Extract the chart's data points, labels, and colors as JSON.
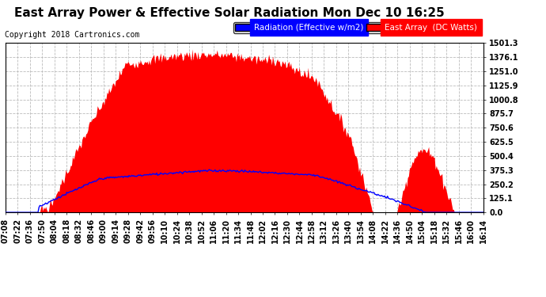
{
  "title": "East Array Power & Effective Solar Radiation Mon Dec 10 16:25",
  "copyright": "Copyright 2018 Cartronics.com",
  "legend_labels": [
    "Radiation (Effective w/m2)",
    "East Array  (DC Watts)"
  ],
  "legend_colors": [
    "#0000ff",
    "#ff0000"
  ],
  "background_color": "#ffffff",
  "plot_bg_color": "#ffffff",
  "ytick_labels": [
    "0.0",
    "125.1",
    "250.2",
    "375.3",
    "500.4",
    "625.5",
    "750.6",
    "875.7",
    "1000.8",
    "1125.9",
    "1251.0",
    "1376.1",
    "1501.3"
  ],
  "ytick_values": [
    0.0,
    125.1,
    250.2,
    375.3,
    500.4,
    625.5,
    750.6,
    875.7,
    1000.8,
    1125.9,
    1251.0,
    1376.1,
    1501.3
  ],
  "ymax": 1501.3,
  "xtick_labels": [
    "07:08",
    "07:22",
    "07:36",
    "07:50",
    "08:04",
    "08:18",
    "08:32",
    "08:46",
    "09:00",
    "09:14",
    "09:28",
    "09:42",
    "09:56",
    "10:10",
    "10:24",
    "10:38",
    "10:52",
    "11:06",
    "11:20",
    "11:34",
    "11:48",
    "12:02",
    "12:16",
    "12:30",
    "12:44",
    "12:58",
    "13:12",
    "13:26",
    "13:40",
    "13:54",
    "14:08",
    "14:22",
    "14:36",
    "14:50",
    "15:04",
    "15:18",
    "15:32",
    "15:46",
    "16:00",
    "16:14"
  ],
  "grid_color": "#bbbbbb",
  "grid_linestyle": "--",
  "fill_color_red": "#ff0000",
  "line_color_blue": "#0000ff",
  "title_fontsize": 11,
  "tick_fontsize": 7,
  "legend_fontsize": 7.5,
  "copyright_fontsize": 7
}
